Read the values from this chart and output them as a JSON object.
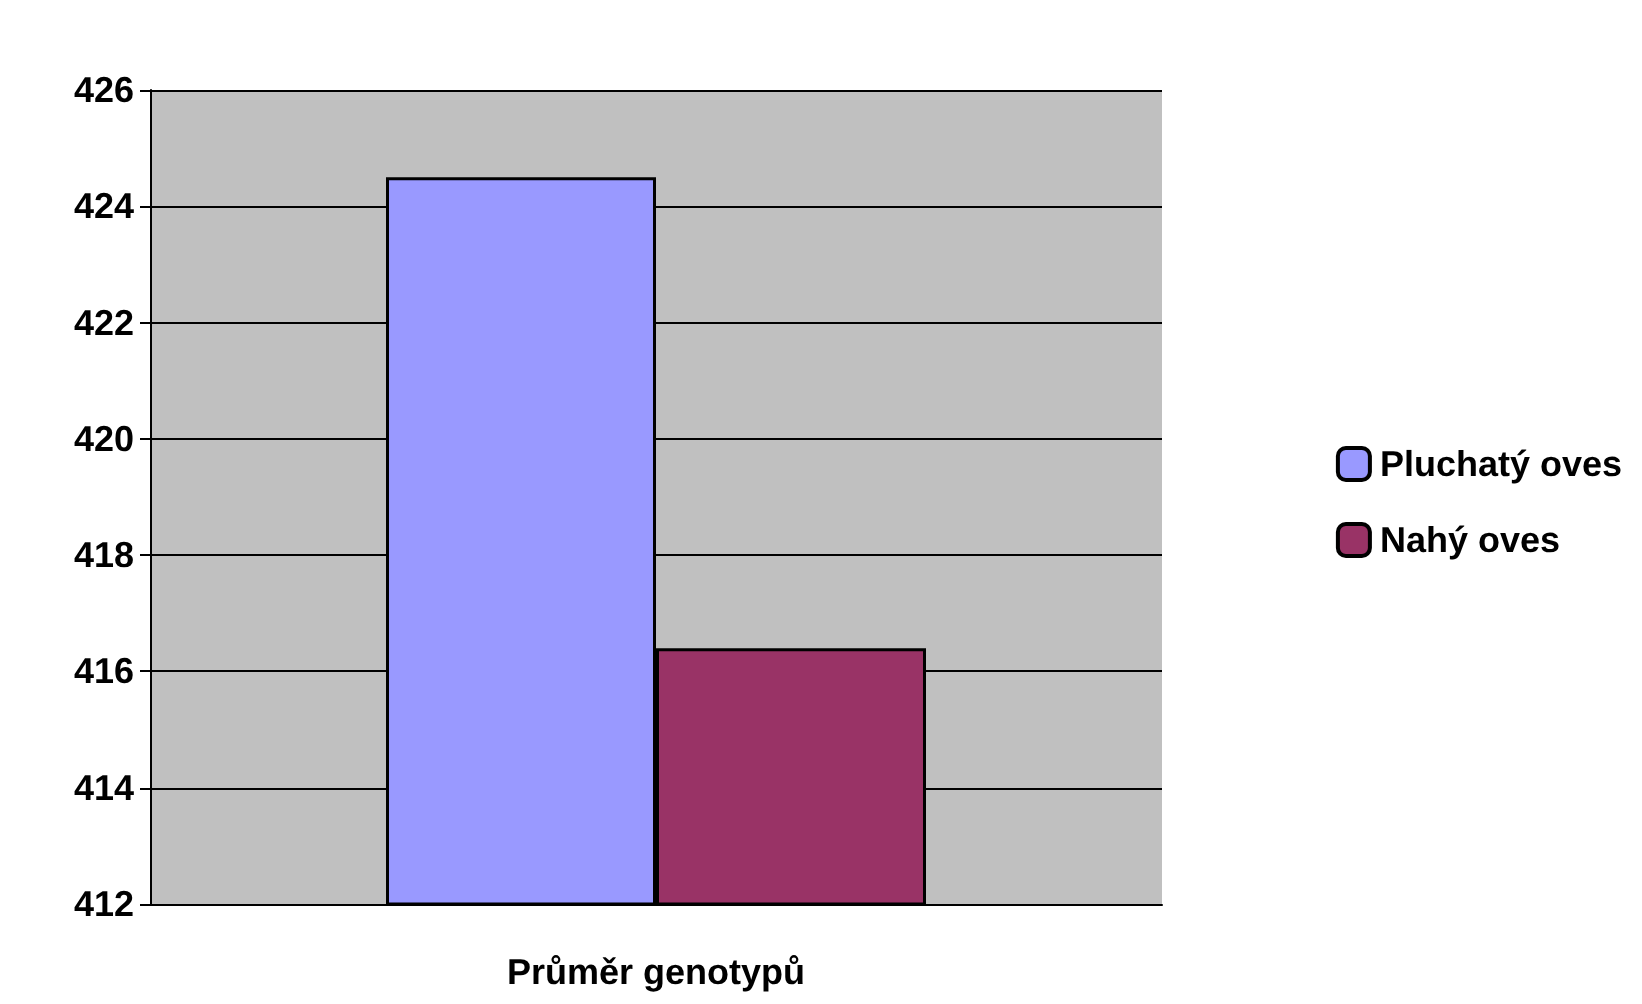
{
  "chart_data": {
    "type": "bar",
    "xlabel": "Průměr genotypů",
    "categories": [
      null
    ],
    "series": [
      {
        "name": "Pluchatý oves",
        "color": "#9999ff",
        "values": [
          424.5
        ]
      },
      {
        "name": "Nahý oves",
        "color": "#993366",
        "values": [
          416.4
        ]
      }
    ],
    "ylim": [
      412,
      426
    ],
    "yticks": [
      412,
      414,
      416,
      418,
      420,
      422,
      424,
      426
    ],
    "grid": "y",
    "legend": "right"
  }
}
